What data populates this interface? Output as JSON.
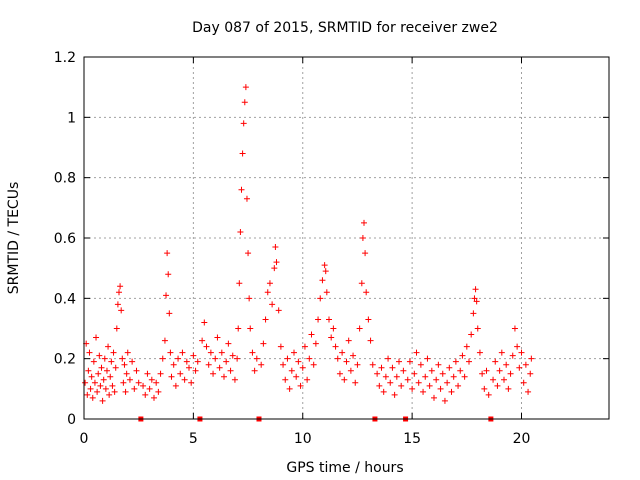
{
  "chart_data": {
    "type": "scatter",
    "title": "Day 087 of 2015, SRMTID for receiver zwe2",
    "xlabel": "GPS time / hours",
    "ylabel": "SRMTID / TECUs",
    "xlim": [
      0,
      24
    ],
    "ylim": [
      0,
      1.2
    ],
    "xticks": [
      0,
      5,
      10,
      15,
      20
    ],
    "yticks": [
      0,
      0.2,
      0.4,
      0.6,
      0.8,
      1,
      1.2
    ],
    "grid": true,
    "marker": "plus",
    "color": "#ff0000",
    "zero_markers_x": [
      2.6,
      5.3,
      8.0,
      13.3,
      14.7,
      18.6
    ],
    "series": [
      {
        "name": "SRMTID",
        "points": [
          [
            0.05,
            0.12
          ],
          [
            0.1,
            0.25
          ],
          [
            0.15,
            0.08
          ],
          [
            0.2,
            0.16
          ],
          [
            0.25,
            0.22
          ],
          [
            0.3,
            0.1
          ],
          [
            0.35,
            0.14
          ],
          [
            0.4,
            0.07
          ],
          [
            0.45,
            0.19
          ],
          [
            0.5,
            0.12
          ],
          [
            0.55,
            0.27
          ],
          [
            0.6,
            0.09
          ],
          [
            0.65,
            0.15
          ],
          [
            0.7,
            0.21
          ],
          [
            0.75,
            0.11
          ],
          [
            0.8,
            0.17
          ],
          [
            0.85,
            0.06
          ],
          [
            0.9,
            0.13
          ],
          [
            0.95,
            0.2
          ],
          [
            1.0,
            0.1
          ],
          [
            1.05,
            0.16
          ],
          [
            1.1,
            0.24
          ],
          [
            1.15,
            0.08
          ],
          [
            1.2,
            0.14
          ],
          [
            1.25,
            0.19
          ],
          [
            1.3,
            0.11
          ],
          [
            1.35,
            0.22
          ],
          [
            1.4,
            0.09
          ],
          [
            1.45,
            0.17
          ],
          [
            1.5,
            0.3
          ],
          [
            1.55,
            0.38
          ],
          [
            1.6,
            0.42
          ],
          [
            1.65,
            0.44
          ],
          [
            1.7,
            0.36
          ],
          [
            1.75,
            0.2
          ],
          [
            1.8,
            0.12
          ],
          [
            1.85,
            0.18
          ],
          [
            1.9,
            0.09
          ],
          [
            1.95,
            0.15
          ],
          [
            2.0,
            0.22
          ],
          [
            2.1,
            0.13
          ],
          [
            2.2,
            0.19
          ],
          [
            2.3,
            0.1
          ],
          [
            2.4,
            0.16
          ],
          [
            2.5,
            0.12
          ],
          [
            2.7,
            0.11
          ],
          [
            2.8,
            0.08
          ],
          [
            2.9,
            0.15
          ],
          [
            3.0,
            0.1
          ],
          [
            3.1,
            0.13
          ],
          [
            3.2,
            0.07
          ],
          [
            3.3,
            0.12
          ],
          [
            3.4,
            0.09
          ],
          [
            3.5,
            0.15
          ],
          [
            3.6,
            0.2
          ],
          [
            3.7,
            0.26
          ],
          [
            3.75,
            0.41
          ],
          [
            3.8,
            0.55
          ],
          [
            3.85,
            0.48
          ],
          [
            3.9,
            0.35
          ],
          [
            3.95,
            0.22
          ],
          [
            4.0,
            0.14
          ],
          [
            4.1,
            0.18
          ],
          [
            4.2,
            0.11
          ],
          [
            4.3,
            0.2
          ],
          [
            4.4,
            0.15
          ],
          [
            4.5,
            0.22
          ],
          [
            4.6,
            0.13
          ],
          [
            4.7,
            0.19
          ],
          [
            4.8,
            0.17
          ],
          [
            4.9,
            0.12
          ],
          [
            5.0,
            0.21
          ],
          [
            5.1,
            0.16
          ],
          [
            5.2,
            0.19
          ],
          [
            5.4,
            0.26
          ],
          [
            5.5,
            0.32
          ],
          [
            5.6,
            0.24
          ],
          [
            5.7,
            0.18
          ],
          [
            5.8,
            0.22
          ],
          [
            5.9,
            0.15
          ],
          [
            6.0,
            0.2
          ],
          [
            6.1,
            0.27
          ],
          [
            6.2,
            0.17
          ],
          [
            6.3,
            0.22
          ],
          [
            6.4,
            0.14
          ],
          [
            6.5,
            0.19
          ],
          [
            6.6,
            0.25
          ],
          [
            6.7,
            0.16
          ],
          [
            6.8,
            0.21
          ],
          [
            6.9,
            0.13
          ],
          [
            7.0,
            0.2
          ],
          [
            7.05,
            0.3
          ],
          [
            7.1,
            0.45
          ],
          [
            7.15,
            0.62
          ],
          [
            7.2,
            0.76
          ],
          [
            7.25,
            0.88
          ],
          [
            7.3,
            0.98
          ],
          [
            7.35,
            1.05
          ],
          [
            7.4,
            1.1
          ],
          [
            7.45,
            0.73
          ],
          [
            7.5,
            0.55
          ],
          [
            7.55,
            0.4
          ],
          [
            7.6,
            0.3
          ],
          [
            7.7,
            0.22
          ],
          [
            7.8,
            0.16
          ],
          [
            7.9,
            0.2
          ],
          [
            8.1,
            0.18
          ],
          [
            8.2,
            0.25
          ],
          [
            8.3,
            0.33
          ],
          [
            8.4,
            0.42
          ],
          [
            8.5,
            0.45
          ],
          [
            8.6,
            0.38
          ],
          [
            8.7,
            0.5
          ],
          [
            8.75,
            0.57
          ],
          [
            8.8,
            0.52
          ],
          [
            8.9,
            0.36
          ],
          [
            9.0,
            0.24
          ],
          [
            9.1,
            0.18
          ],
          [
            9.2,
            0.13
          ],
          [
            9.3,
            0.2
          ],
          [
            9.4,
            0.1
          ],
          [
            9.5,
            0.16
          ],
          [
            9.6,
            0.22
          ],
          [
            9.7,
            0.14
          ],
          [
            9.8,
            0.19
          ],
          [
            9.9,
            0.11
          ],
          [
            10.0,
            0.17
          ],
          [
            10.1,
            0.24
          ],
          [
            10.2,
            0.13
          ],
          [
            10.3,
            0.2
          ],
          [
            10.4,
            0.28
          ],
          [
            10.5,
            0.18
          ],
          [
            10.6,
            0.25
          ],
          [
            10.7,
            0.33
          ],
          [
            10.8,
            0.4
          ],
          [
            10.9,
            0.46
          ],
          [
            11.0,
            0.51
          ],
          [
            11.05,
            0.49
          ],
          [
            11.1,
            0.42
          ],
          [
            11.2,
            0.33
          ],
          [
            11.3,
            0.27
          ],
          [
            11.4,
            0.3
          ],
          [
            11.5,
            0.24
          ],
          [
            11.6,
            0.2
          ],
          [
            11.7,
            0.15
          ],
          [
            11.8,
            0.22
          ],
          [
            11.9,
            0.13
          ],
          [
            12.0,
            0.19
          ],
          [
            12.1,
            0.26
          ],
          [
            12.2,
            0.16
          ],
          [
            12.3,
            0.21
          ],
          [
            12.4,
            0.12
          ],
          [
            12.5,
            0.18
          ],
          [
            12.6,
            0.3
          ],
          [
            12.7,
            0.45
          ],
          [
            12.75,
            0.6
          ],
          [
            12.8,
            0.65
          ],
          [
            12.85,
            0.55
          ],
          [
            12.9,
            0.42
          ],
          [
            13.0,
            0.33
          ],
          [
            13.1,
            0.26
          ],
          [
            13.2,
            0.18
          ],
          [
            13.4,
            0.15
          ],
          [
            13.5,
            0.11
          ],
          [
            13.6,
            0.17
          ],
          [
            13.7,
            0.09
          ],
          [
            13.8,
            0.14
          ],
          [
            13.9,
            0.2
          ],
          [
            14.0,
            0.12
          ],
          [
            14.1,
            0.17
          ],
          [
            14.2,
            0.08
          ],
          [
            14.3,
            0.14
          ],
          [
            14.4,
            0.19
          ],
          [
            14.5,
            0.11
          ],
          [
            14.6,
            0.16
          ],
          [
            14.8,
            0.13
          ],
          [
            14.9,
            0.19
          ],
          [
            15.0,
            0.1
          ],
          [
            15.1,
            0.15
          ],
          [
            15.2,
            0.22
          ],
          [
            15.3,
            0.12
          ],
          [
            15.4,
            0.18
          ],
          [
            15.5,
            0.09
          ],
          [
            15.6,
            0.14
          ],
          [
            15.7,
            0.2
          ],
          [
            15.8,
            0.11
          ],
          [
            15.9,
            0.16
          ],
          [
            16.0,
            0.07
          ],
          [
            16.1,
            0.13
          ],
          [
            16.2,
            0.18
          ],
          [
            16.3,
            0.1
          ],
          [
            16.4,
            0.15
          ],
          [
            16.5,
            0.06
          ],
          [
            16.6,
            0.12
          ],
          [
            16.7,
            0.17
          ],
          [
            16.8,
            0.09
          ],
          [
            16.9,
            0.14
          ],
          [
            17.0,
            0.19
          ],
          [
            17.1,
            0.11
          ],
          [
            17.2,
            0.16
          ],
          [
            17.3,
            0.21
          ],
          [
            17.4,
            0.14
          ],
          [
            17.5,
            0.24
          ],
          [
            17.6,
            0.19
          ],
          [
            17.7,
            0.28
          ],
          [
            17.8,
            0.35
          ],
          [
            17.85,
            0.4
          ],
          [
            17.9,
            0.43
          ],
          [
            17.95,
            0.39
          ],
          [
            18.0,
            0.3
          ],
          [
            18.1,
            0.22
          ],
          [
            18.2,
            0.15
          ],
          [
            18.3,
            0.1
          ],
          [
            18.4,
            0.16
          ],
          [
            18.5,
            0.08
          ],
          [
            18.7,
            0.13
          ],
          [
            18.8,
            0.19
          ],
          [
            18.9,
            0.11
          ],
          [
            19.0,
            0.16
          ],
          [
            19.1,
            0.22
          ],
          [
            19.2,
            0.13
          ],
          [
            19.3,
            0.18
          ],
          [
            19.4,
            0.1
          ],
          [
            19.5,
            0.15
          ],
          [
            19.6,
            0.21
          ],
          [
            19.7,
            0.3
          ],
          [
            19.8,
            0.24
          ],
          [
            19.9,
            0.17
          ],
          [
            20.0,
            0.22
          ],
          [
            20.1,
            0.12
          ],
          [
            20.2,
            0.18
          ],
          [
            20.3,
            0.09
          ],
          [
            20.4,
            0.15
          ],
          [
            20.45,
            0.2
          ]
        ]
      }
    ]
  }
}
